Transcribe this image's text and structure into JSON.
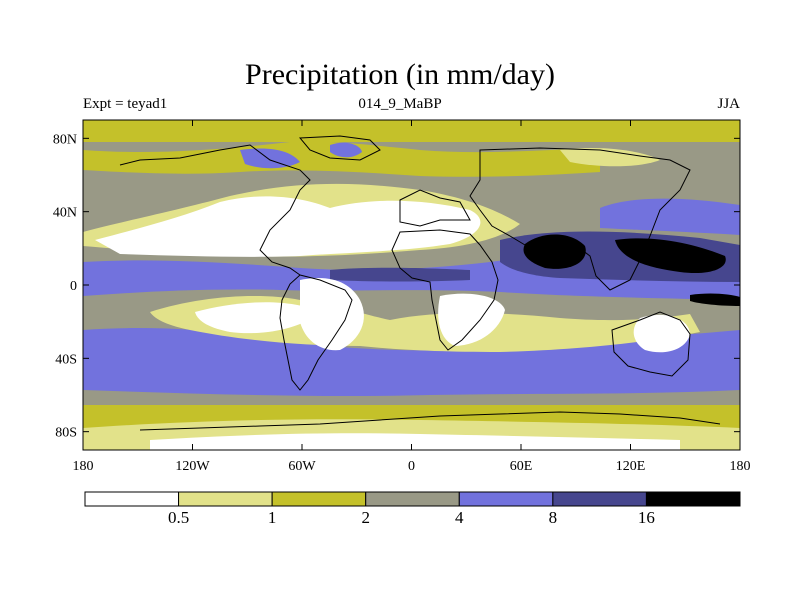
{
  "title": "Precipitation (in mm/day)",
  "subtitle_left": "Expt = teyad1",
  "subtitle_center": "014_9_MaBP",
  "subtitle_right": "JJA",
  "map": {
    "lon_ticks": [
      {
        "lon": -180,
        "label": "180"
      },
      {
        "lon": -120,
        "label": "120W"
      },
      {
        "lon": -60,
        "label": "60W"
      },
      {
        "lon": 0,
        "label": "0"
      },
      {
        "lon": 60,
        "label": "60E"
      },
      {
        "lon": 120,
        "label": "120E"
      },
      {
        "lon": 180,
        "label": "180"
      }
    ],
    "lat_ticks": [
      {
        "lat": 80,
        "label": "80N"
      },
      {
        "lat": 40,
        "label": "40N"
      },
      {
        "lat": 0,
        "label": "0"
      },
      {
        "lat": -40,
        "label": "40S"
      },
      {
        "lat": -80,
        "label": "80S"
      }
    ]
  },
  "legend": {
    "labels": [
      "0.5",
      "1",
      "2",
      "4",
      "8",
      "16"
    ],
    "colors": [
      "#ffffff",
      "#e2e28a",
      "#c4c12a",
      "#999986",
      "#7272dd",
      "#46468e",
      "#000000"
    ]
  }
}
